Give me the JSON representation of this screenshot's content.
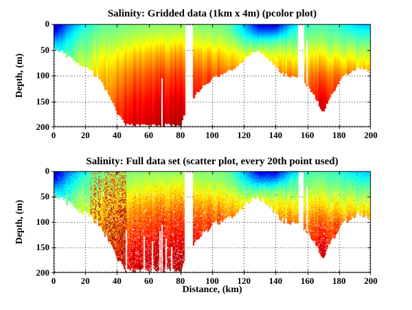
{
  "figure": {
    "background": "#ffffff",
    "text_color": "#000000"
  },
  "chart_data": [
    {
      "type": "heatmap",
      "render_style": "pcolor",
      "title": "Salinity: Gridded data (1km x 4m) (pcolor plot)",
      "xlabel": "",
      "ylabel": "Depth, (m)",
      "x_range_km": [
        0,
        200
      ],
      "y_range_m": [
        0,
        200
      ],
      "y_axis_reversed": true,
      "x_ticks": [
        0,
        20,
        40,
        60,
        80,
        100,
        120,
        140,
        160,
        180,
        200
      ],
      "y_ticks": [
        0,
        50,
        100,
        150,
        200
      ],
      "grid": "dotted-black",
      "colormap": "jet",
      "field": "shared_salinity_field",
      "deep_data_gaps": [
        {
          "x_km": 67.8,
          "from_depth_m": 105
        },
        {
          "x_km": 159.2,
          "from_depth_m": 30
        }
      ]
    },
    {
      "type": "scatter",
      "render_style": "scatter-speckle",
      "title": "Salinity: Full data set (scatter plot, every 20th point used)",
      "xlabel": "Distance, (km)",
      "ylabel": "Depth, (m)",
      "x_range_km": [
        0,
        200
      ],
      "y_range_m": [
        0,
        200
      ],
      "y_axis_reversed": true,
      "x_ticks": [
        0,
        20,
        40,
        60,
        80,
        100,
        120,
        140,
        160,
        180,
        200
      ],
      "y_ticks": [
        0,
        50,
        100,
        150,
        200
      ],
      "grid": "dotted-black",
      "colormap": "jet",
      "field": "shared_salinity_field",
      "noise_streak_region_km": [
        23,
        46
      ],
      "deep_data_gaps": [
        {
          "x_km": 45.4,
          "from_depth_m": 115
        },
        {
          "x_km": 56.8,
          "from_depth_m": 128
        },
        {
          "x_km": 61.9,
          "from_depth_m": 138
        },
        {
          "x_km": 66.6,
          "from_depth_m": 118
        },
        {
          "x_km": 70.4,
          "from_depth_m": 132
        },
        {
          "x_km": 74.1,
          "from_depth_m": 148
        },
        {
          "x_km": 67.8,
          "from_depth_m": 105
        },
        {
          "x_km": 159.2,
          "from_depth_m": 30
        }
      ]
    }
  ],
  "shared_salinity_field": {
    "description": "Normalized salinity rendered with jet colormap (0=dark blue fresh surface water, 1=dark red salty deep water); section of a coastal transect with two deep basins and a mid-transect ridge",
    "distance_step_km": 5,
    "bottom_depth_m_per_5km": [
      45,
      55,
      65,
      75,
      85,
      95,
      110,
      140,
      172,
      195,
      197,
      197,
      197,
      197,
      197,
      197,
      197,
      160,
      132,
      120,
      106,
      99,
      93,
      84,
      70,
      58,
      53,
      68,
      82,
      98,
      102,
      105,
      118,
      140,
      172,
      142,
      112,
      96,
      88,
      85,
      92
    ],
    "data_gaps_km": [
      [
        82.7,
        88.0
      ],
      [
        154.5,
        157.5
      ]
    ],
    "profile_distances_km": [
      0,
      10,
      20,
      30,
      40,
      50,
      60,
      70,
      80,
      90,
      100,
      110,
      120,
      130,
      140,
      150,
      160,
      170,
      180,
      190,
      200
    ],
    "profile_depths_m": [
      0,
      15,
      35,
      60,
      100,
      150,
      200
    ],
    "profiles_norm": [
      [
        0.03,
        0.1,
        0.28,
        0.4,
        0.5,
        0.6,
        0.7
      ],
      [
        0.24,
        0.32,
        0.4,
        0.48,
        0.55,
        0.62,
        0.7
      ],
      [
        0.38,
        0.44,
        0.48,
        0.54,
        0.62,
        0.68,
        0.72
      ],
      [
        0.46,
        0.49,
        0.53,
        0.6,
        0.68,
        0.73,
        0.78
      ],
      [
        0.48,
        0.51,
        0.56,
        0.64,
        0.73,
        0.81,
        0.86
      ],
      [
        0.5,
        0.53,
        0.59,
        0.68,
        0.78,
        0.87,
        0.93
      ],
      [
        0.51,
        0.55,
        0.62,
        0.71,
        0.81,
        0.89,
        0.94
      ],
      [
        0.51,
        0.55,
        0.62,
        0.71,
        0.82,
        0.9,
        0.95
      ],
      [
        0.51,
        0.56,
        0.63,
        0.72,
        0.82,
        0.9,
        0.95
      ],
      [
        0.5,
        0.53,
        0.58,
        0.67,
        0.78,
        0.86,
        0.88
      ],
      [
        0.5,
        0.52,
        0.58,
        0.68,
        0.8,
        0.84,
        0.86
      ],
      [
        0.48,
        0.5,
        0.56,
        0.66,
        0.78,
        0.82,
        0.84
      ],
      [
        0.3,
        0.36,
        0.46,
        0.6,
        0.72,
        0.78,
        0.8
      ],
      [
        0.08,
        0.22,
        0.44,
        0.62,
        0.7,
        0.76,
        0.78
      ],
      [
        0.08,
        0.24,
        0.46,
        0.6,
        0.73,
        0.78,
        0.8
      ],
      [
        0.3,
        0.4,
        0.48,
        0.6,
        0.76,
        0.8,
        0.82
      ],
      [
        0.43,
        0.46,
        0.51,
        0.61,
        0.73,
        0.81,
        0.84
      ],
      [
        0.45,
        0.48,
        0.53,
        0.63,
        0.78,
        0.9,
        0.93
      ],
      [
        0.41,
        0.45,
        0.5,
        0.6,
        0.76,
        0.86,
        0.88
      ],
      [
        0.33,
        0.4,
        0.48,
        0.58,
        0.75,
        0.8,
        0.82
      ],
      [
        0.3,
        0.38,
        0.46,
        0.56,
        0.72,
        0.78,
        0.8
      ]
    ]
  }
}
